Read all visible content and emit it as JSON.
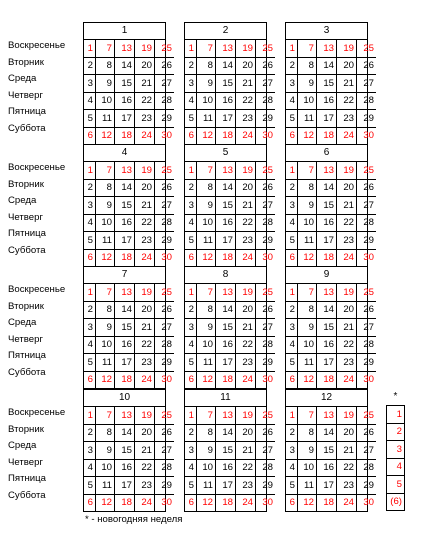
{
  "weekdays": [
    "Воскресенье",
    "Вторник",
    "Среда",
    "Четверг",
    "Пятница",
    "Суббота"
  ],
  "months": [
    {
      "title": "1",
      "rows": [
        [
          "1",
          "7",
          "13",
          "19",
          "25"
        ],
        [
          "2",
          "8",
          "14",
          "20",
          "26"
        ],
        [
          "3",
          "9",
          "15",
          "21",
          "27"
        ],
        [
          "4",
          "10",
          "16",
          "22",
          "28"
        ],
        [
          "5",
          "11",
          "17",
          "23",
          "29"
        ],
        [
          "6",
          "12",
          "18",
          "24",
          "30"
        ]
      ]
    },
    {
      "title": "2",
      "rows": [
        [
          "1",
          "7",
          "13",
          "19",
          "25"
        ],
        [
          "2",
          "8",
          "14",
          "20",
          "26"
        ],
        [
          "3",
          "9",
          "15",
          "21",
          "27"
        ],
        [
          "4",
          "10",
          "16",
          "22",
          "28"
        ],
        [
          "5",
          "11",
          "17",
          "23",
          "29"
        ],
        [
          "6",
          "12",
          "18",
          "24",
          "30"
        ]
      ]
    },
    {
      "title": "3",
      "rows": [
        [
          "1",
          "7",
          "13",
          "19",
          "25"
        ],
        [
          "2",
          "8",
          "14",
          "20",
          "26"
        ],
        [
          "3",
          "9",
          "15",
          "21",
          "27"
        ],
        [
          "4",
          "10",
          "16",
          "22",
          "28"
        ],
        [
          "5",
          "11",
          "17",
          "23",
          "29"
        ],
        [
          "6",
          "12",
          "18",
          "24",
          "30"
        ]
      ]
    },
    {
      "title": "4",
      "rows": [
        [
          "1",
          "7",
          "13",
          "19",
          "25"
        ],
        [
          "2",
          "8",
          "14",
          "20",
          "26"
        ],
        [
          "3",
          "9",
          "15",
          "21",
          "27"
        ],
        [
          "4",
          "10",
          "16",
          "22",
          "28"
        ],
        [
          "5",
          "11",
          "17",
          "23",
          "29"
        ],
        [
          "6",
          "12",
          "18",
          "24",
          "30"
        ]
      ]
    },
    {
      "title": "5",
      "rows": [
        [
          "1",
          "7",
          "13",
          "19",
          "25"
        ],
        [
          "2",
          "8",
          "14",
          "20",
          "26"
        ],
        [
          "3",
          "9",
          "15",
          "21",
          "27"
        ],
        [
          "4",
          "10",
          "16",
          "22",
          "28"
        ],
        [
          "5",
          "11",
          "17",
          "23",
          "29"
        ],
        [
          "6",
          "12",
          "18",
          "24",
          "30"
        ]
      ]
    },
    {
      "title": "6",
      "rows": [
        [
          "1",
          "7",
          "13",
          "19",
          "25"
        ],
        [
          "2",
          "8",
          "14",
          "20",
          "26"
        ],
        [
          "3",
          "9",
          "15",
          "21",
          "27"
        ],
        [
          "4",
          "10",
          "16",
          "22",
          "28"
        ],
        [
          "5",
          "11",
          "17",
          "23",
          "29"
        ],
        [
          "6",
          "12",
          "18",
          "24",
          "30"
        ]
      ]
    },
    {
      "title": "7",
      "rows": [
        [
          "1",
          "7",
          "13",
          "19",
          "25"
        ],
        [
          "2",
          "8",
          "14",
          "20",
          "26"
        ],
        [
          "3",
          "9",
          "15",
          "21",
          "27"
        ],
        [
          "4",
          "10",
          "16",
          "22",
          "28"
        ],
        [
          "5",
          "11",
          "17",
          "23",
          "29"
        ],
        [
          "6",
          "12",
          "18",
          "24",
          "30"
        ]
      ]
    },
    {
      "title": "8",
      "rows": [
        [
          "1",
          "7",
          "13",
          "19",
          "25"
        ],
        [
          "2",
          "8",
          "14",
          "20",
          "26"
        ],
        [
          "3",
          "9",
          "15",
          "21",
          "27"
        ],
        [
          "4",
          "10",
          "16",
          "22",
          "28"
        ],
        [
          "5",
          "11",
          "17",
          "23",
          "29"
        ],
        [
          "6",
          "12",
          "18",
          "24",
          "30"
        ]
      ]
    },
    {
      "title": "9",
      "rows": [
        [
          "1",
          "7",
          "13",
          "19",
          "25"
        ],
        [
          "2",
          "8",
          "14",
          "20",
          "26"
        ],
        [
          "3",
          "9",
          "15",
          "21",
          "27"
        ],
        [
          "4",
          "10",
          "16",
          "22",
          "28"
        ],
        [
          "5",
          "11",
          "17",
          "23",
          "29"
        ],
        [
          "6",
          "12",
          "18",
          "24",
          "30"
        ]
      ]
    },
    {
      "title": "10",
      "rows": [
        [
          "1",
          "7",
          "13",
          "19",
          "25"
        ],
        [
          "2",
          "8",
          "14",
          "20",
          "26"
        ],
        [
          "3",
          "9",
          "15",
          "21",
          "27"
        ],
        [
          "4",
          "10",
          "16",
          "22",
          "28"
        ],
        [
          "5",
          "11",
          "17",
          "23",
          "29"
        ],
        [
          "6",
          "12",
          "18",
          "24",
          "30"
        ]
      ]
    },
    {
      "title": "11",
      "rows": [
        [
          "1",
          "7",
          "13",
          "19",
          "25"
        ],
        [
          "2",
          "8",
          "14",
          "20",
          "26"
        ],
        [
          "3",
          "9",
          "15",
          "21",
          "27"
        ],
        [
          "4",
          "10",
          "16",
          "22",
          "28"
        ],
        [
          "5",
          "11",
          "17",
          "23",
          "29"
        ],
        [
          "6",
          "12",
          "18",
          "24",
          "30"
        ]
      ]
    },
    {
      "title": "12",
      "rows": [
        [
          "1",
          "7",
          "13",
          "19",
          "25"
        ],
        [
          "2",
          "8",
          "14",
          "20",
          "26"
        ],
        [
          "3",
          "9",
          "15",
          "21",
          "27"
        ],
        [
          "4",
          "10",
          "16",
          "22",
          "28"
        ],
        [
          "5",
          "11",
          "17",
          "23",
          "29"
        ],
        [
          "6",
          "12",
          "18",
          "24",
          "30"
        ]
      ]
    }
  ],
  "newyear_week": {
    "marker": "*",
    "days": [
      "1",
      "2",
      "3",
      "4",
      "5",
      "(6)"
    ]
  },
  "footnote": "* - новогодняя неделя",
  "colors": {
    "holiday": "#ff0000",
    "text": "#000000"
  }
}
